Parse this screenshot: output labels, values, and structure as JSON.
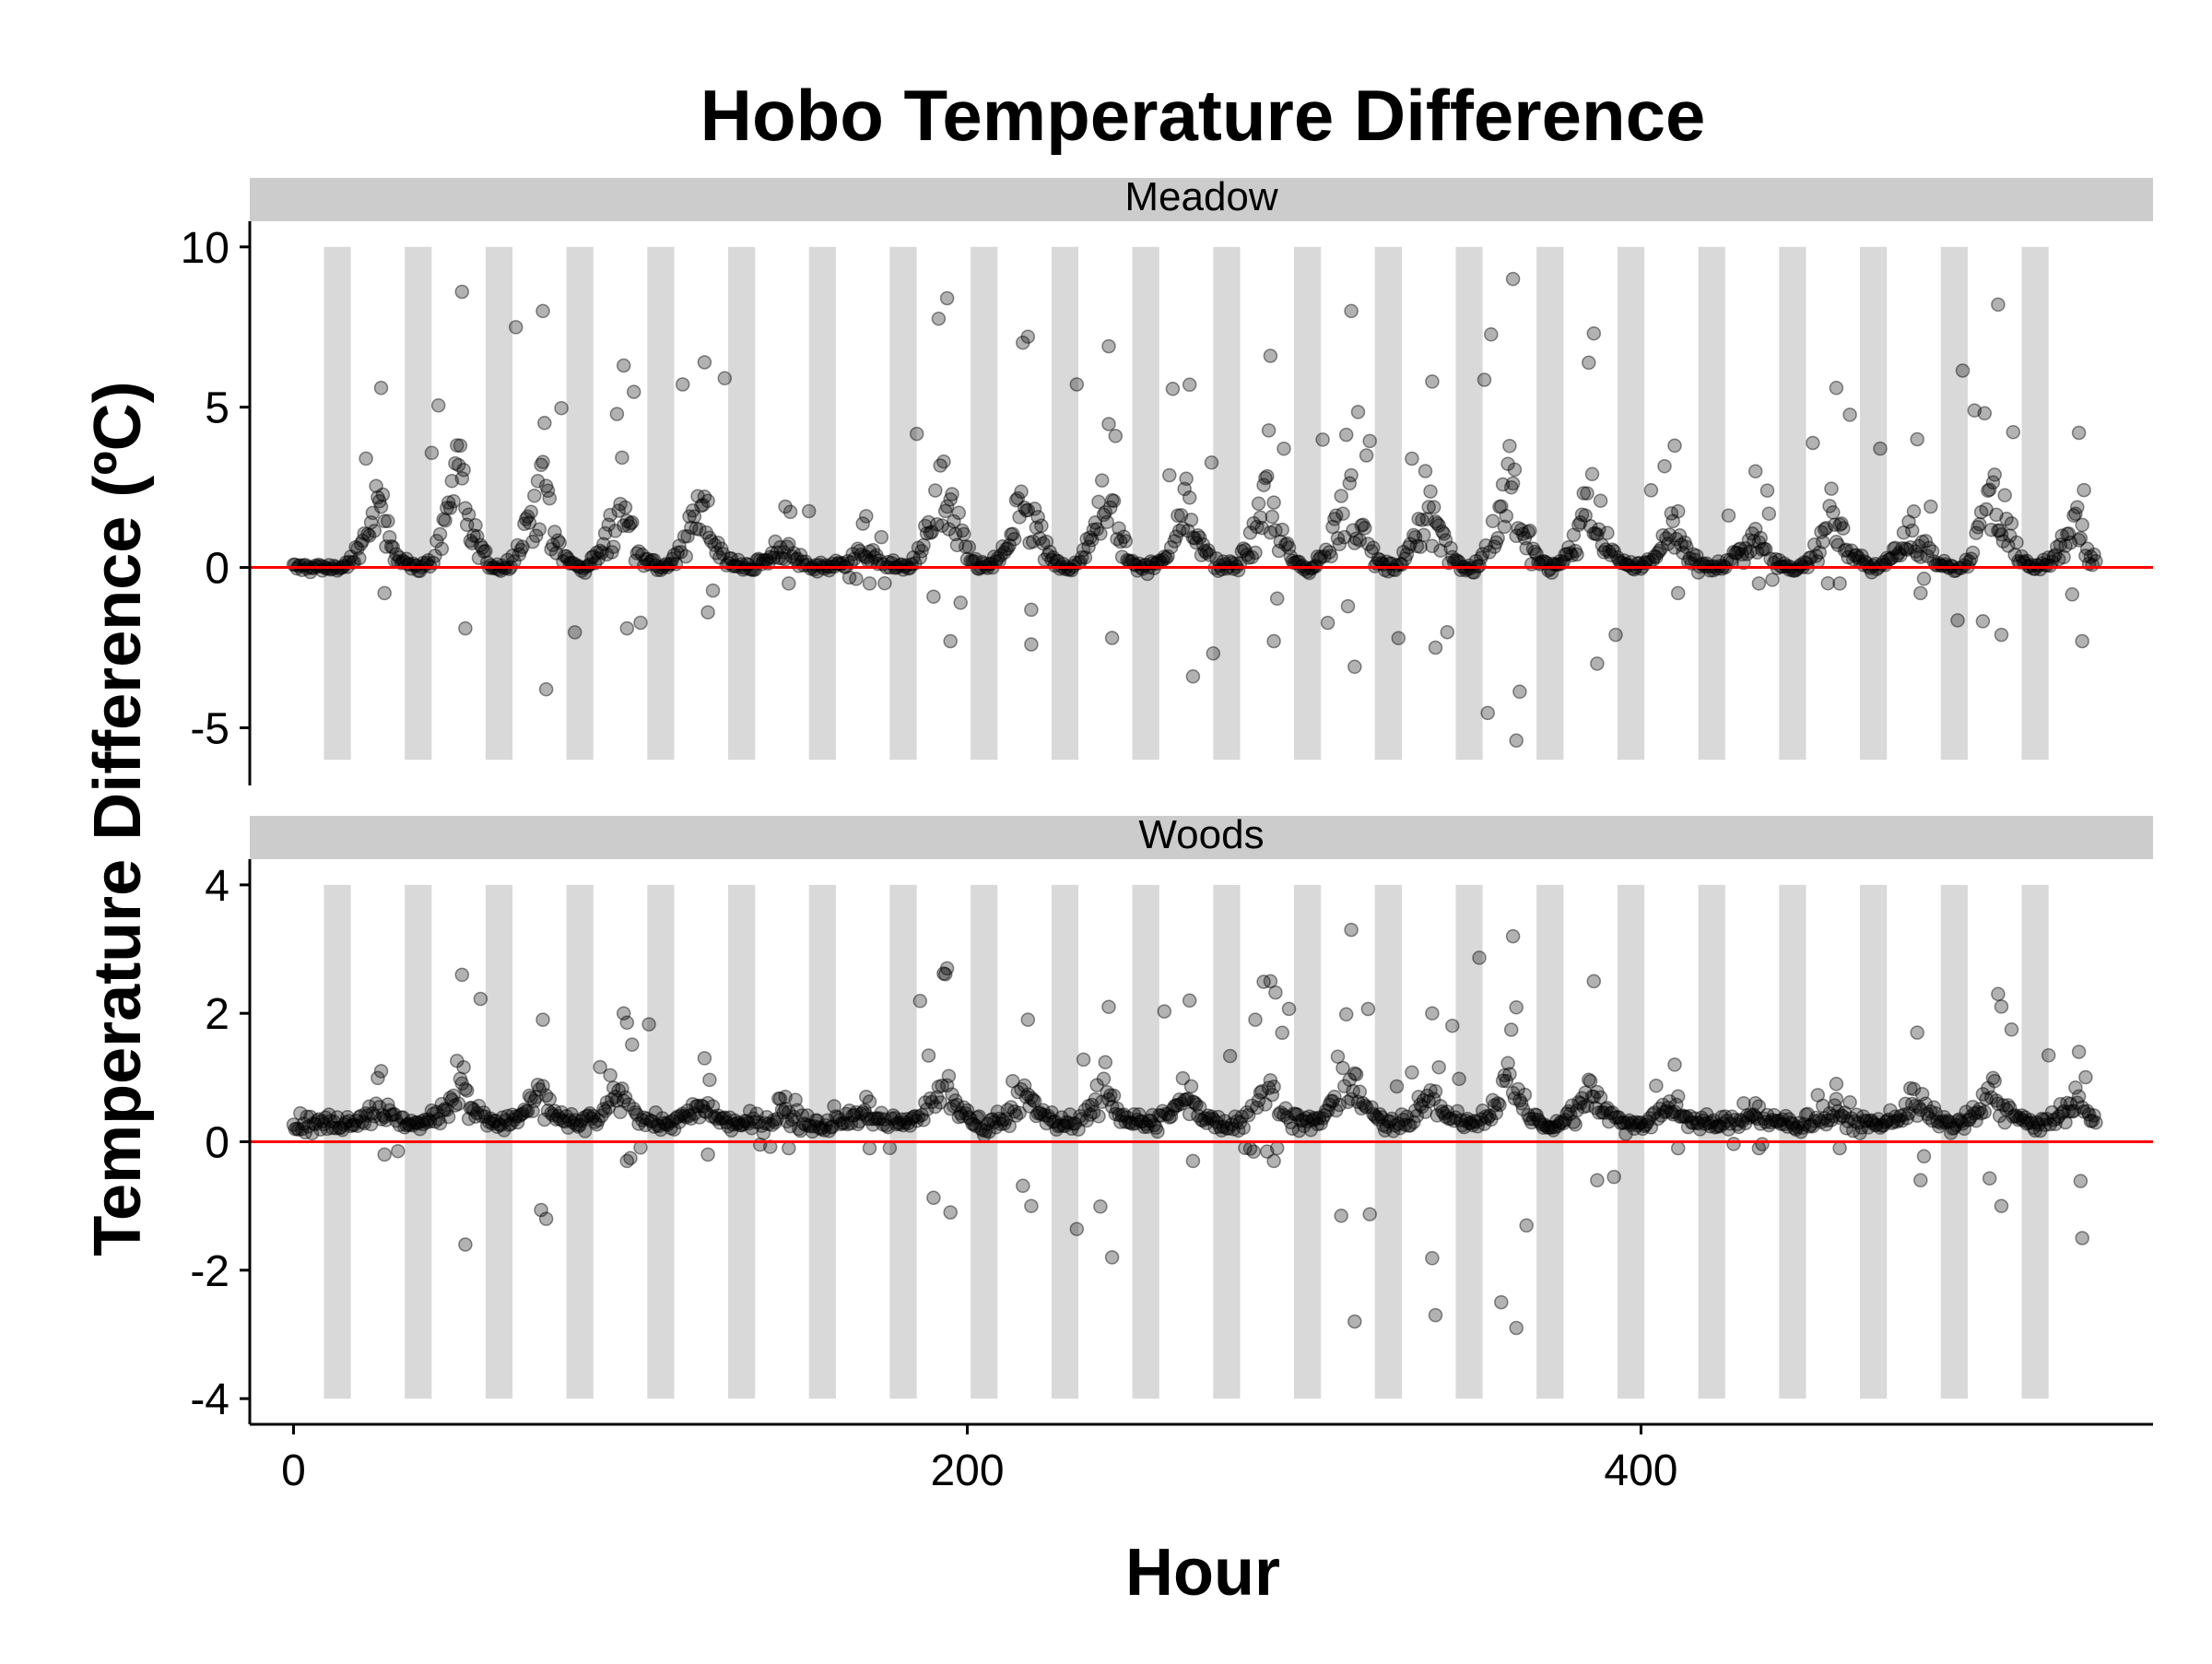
{
  "chart_data": {
    "type": "scatter",
    "title": "Hobo Temperature Difference",
    "xlabel": "Hour",
    "ylabel": "Temperature Difference (ºC)",
    "xlim": [
      -13,
      552
    ],
    "xticks": [
      0,
      200,
      400
    ],
    "grid": false,
    "legend": "none",
    "colors": {
      "points": "#000000",
      "zero_line": "#ff0000",
      "night_bands": "#d9d9d9",
      "strip": "#cccccc"
    },
    "night_bands": {
      "x_start": [
        9,
        33,
        57,
        81,
        105,
        129,
        153,
        177,
        201,
        225,
        249,
        273,
        297,
        321,
        345,
        369,
        393,
        417,
        441,
        465,
        489,
        513
      ],
      "width": 8
    },
    "zero_line_y": 0,
    "panels": [
      {
        "name": "Meadow",
        "ylim": [
          -6.8,
          10.8
        ],
        "yticks": [
          -5,
          0,
          5,
          10
        ],
        "band_range": [
          -6,
          10
        ],
        "day_peaks": [
          {
            "hour": 25,
            "max": 5.6,
            "min": -0.8
          },
          {
            "hour": 49,
            "max": 8.6,
            "min": -1.9
          },
          {
            "hour": 73,
            "max": 8.0,
            "min": -3.8
          },
          {
            "hour": 97,
            "max": 6.3,
            "min": -1.9
          },
          {
            "hour": 121,
            "max": 6.4,
            "min": -1.4
          },
          {
            "hour": 145,
            "max": 1.9,
            "min": -0.5
          },
          {
            "hour": 169,
            "max": 1.6,
            "min": -0.5
          },
          {
            "hour": 193,
            "max": 8.4,
            "min": -2.3
          },
          {
            "hour": 217,
            "max": 7.2,
            "min": -2.4
          },
          {
            "hour": 241,
            "max": 6.9,
            "min": -2.2
          },
          {
            "hour": 265,
            "max": 5.7,
            "min": -3.4
          },
          {
            "hour": 289,
            "max": 6.6,
            "min": -2.3
          },
          {
            "hour": 313,
            "max": 8.0,
            "min": -3.1
          },
          {
            "hour": 337,
            "max": 5.8,
            "min": -2.5
          },
          {
            "hour": 361,
            "max": 9.0,
            "min": -5.4
          },
          {
            "hour": 385,
            "max": 7.3,
            "min": -3.0
          },
          {
            "hour": 409,
            "max": 3.8,
            "min": -0.8
          },
          {
            "hour": 433,
            "max": 3.0,
            "min": -0.5
          },
          {
            "hour": 457,
            "max": 5.6,
            "min": -0.5
          },
          {
            "hour": 481,
            "max": 4.0,
            "min": -0.8
          },
          {
            "hour": 505,
            "max": 8.2,
            "min": -2.1
          },
          {
            "hour": 529,
            "max": 4.2,
            "min": -2.3
          }
        ]
      },
      {
        "name": "Woods",
        "ylim": [
          -4.4,
          4.4
        ],
        "yticks": [
          -4,
          -2,
          0,
          2,
          4
        ],
        "band_range": [
          -4,
          4
        ],
        "day_peaks": [
          {
            "hour": 25,
            "max": 1.1,
            "min": -0.2
          },
          {
            "hour": 49,
            "max": 2.6,
            "min": -1.6
          },
          {
            "hour": 73,
            "max": 1.9,
            "min": -1.2
          },
          {
            "hour": 97,
            "max": 2.0,
            "min": -0.3
          },
          {
            "hour": 121,
            "max": 1.3,
            "min": -0.2
          },
          {
            "hour": 145,
            "max": 0.7,
            "min": -0.1
          },
          {
            "hour": 169,
            "max": 0.7,
            "min": -0.1
          },
          {
            "hour": 193,
            "max": 2.7,
            "min": -1.1
          },
          {
            "hour": 217,
            "max": 1.9,
            "min": -1.0
          },
          {
            "hour": 241,
            "max": 2.1,
            "min": -1.8
          },
          {
            "hour": 265,
            "max": 2.2,
            "min": -0.3
          },
          {
            "hour": 289,
            "max": 2.5,
            "min": -0.3
          },
          {
            "hour": 313,
            "max": 3.3,
            "min": -2.8
          },
          {
            "hour": 337,
            "max": 2.0,
            "min": -2.7
          },
          {
            "hour": 361,
            "max": 3.2,
            "min": -2.9
          },
          {
            "hour": 385,
            "max": 2.5,
            "min": -0.6
          },
          {
            "hour": 409,
            "max": 1.2,
            "min": -0.1
          },
          {
            "hour": 433,
            "max": 0.6,
            "min": -0.1
          },
          {
            "hour": 457,
            "max": 0.9,
            "min": -0.1
          },
          {
            "hour": 481,
            "max": 1.7,
            "min": -0.6
          },
          {
            "hour": 505,
            "max": 2.3,
            "min": -1.0
          },
          {
            "hour": 529,
            "max": 1.4,
            "min": -1.5
          }
        ]
      }
    ]
  }
}
